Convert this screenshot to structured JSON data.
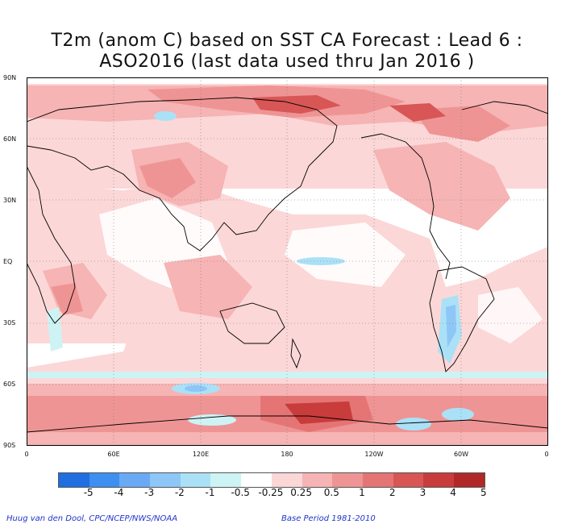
{
  "title_line1": "T2m (anom C) based on SST CA Forecast : Lead 6 :",
  "title_line2": "ASO2016 (last data used thru Jan 2016 )",
  "lat_labels": [
    "90N",
    "60N",
    "30N",
    "EQ",
    "30S",
    "60S",
    "90S"
  ],
  "lon_labels": [
    "0",
    "60E",
    "120E",
    "180",
    "120W",
    "60W",
    "0"
  ],
  "colorbar": {
    "colors": [
      "#1f6fe0",
      "#3d8ff0",
      "#6aaaf5",
      "#8ec7f7",
      "#abe1f7",
      "#cdf3f5",
      "#ffffff",
      "#fcd7d7",
      "#f6b4b4",
      "#ef9494",
      "#e57575",
      "#d85656",
      "#c93c3c",
      "#b02828"
    ],
    "labels": [
      "-5",
      "-4",
      "-3",
      "-2",
      "-1",
      "-0.5",
      "-0.25",
      "0.25",
      "0.5",
      "1",
      "2",
      "3",
      "4",
      "5"
    ]
  },
  "credit_left": "Huug van den Dool, CPC/NCEP/NWS/NOAA",
  "credit_right": "Base Period 1981-2010"
}
